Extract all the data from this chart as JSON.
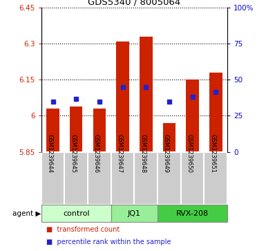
{
  "title": "GDS5340 / 8005064",
  "samples": [
    "GSM1239644",
    "GSM1239645",
    "GSM1239646",
    "GSM1239647",
    "GSM1239648",
    "GSM1239649",
    "GSM1239650",
    "GSM1239651"
  ],
  "bar_bottom": 5.85,
  "bar_tops": [
    6.03,
    6.04,
    6.03,
    6.31,
    6.33,
    5.97,
    6.15,
    6.18
  ],
  "percentile_values": [
    6.06,
    6.07,
    6.06,
    6.12,
    6.12,
    6.06,
    6.08,
    6.1
  ],
  "ylim": [
    5.85,
    6.45
  ],
  "yticks": [
    5.85,
    6.0,
    6.15,
    6.3,
    6.45
  ],
  "ytick_labels": [
    "5.85",
    "6",
    "6.15",
    "6.3",
    "6.45"
  ],
  "right_yticks": [
    0,
    25,
    50,
    75,
    100
  ],
  "right_ytick_labels": [
    "0",
    "25",
    "50",
    "75",
    "100%"
  ],
  "groups": [
    {
      "label": "control",
      "indices": [
        0,
        1,
        2
      ],
      "color": "#ccffcc"
    },
    {
      "label": "JQ1",
      "indices": [
        3,
        4
      ],
      "color": "#99ee99"
    },
    {
      "label": "RVX-208",
      "indices": [
        5,
        6,
        7
      ],
      "color": "#44cc44"
    }
  ],
  "bar_color": "#cc2200",
  "percentile_color": "#2222cc",
  "legend_items": [
    {
      "color": "#cc2200",
      "label": "transformed count"
    },
    {
      "color": "#2222cc",
      "label": "percentile rank within the sample"
    }
  ]
}
